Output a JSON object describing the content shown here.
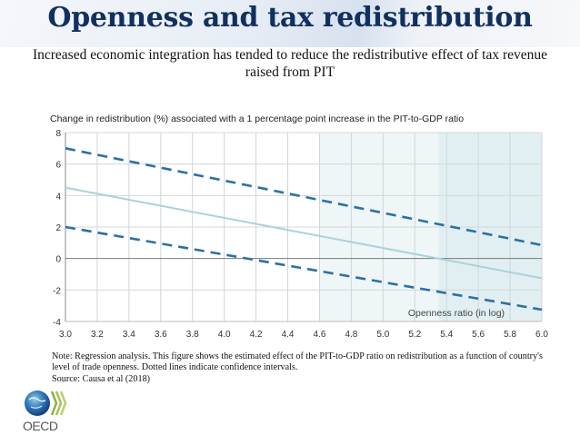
{
  "header": {
    "title": "Openness and tax redistribution",
    "subtitle": "Increased economic integration has tended to reduce the redistributive effect of tax revenue raised from PIT"
  },
  "chart_data": {
    "type": "line",
    "title": "Change in redistribution (%)  associated with a 1 percentage point increase in the PIT-to-GDP ratio",
    "xlabel": "Openness ratio (in log)",
    "ylabel": "",
    "xlim": [
      3.0,
      6.0
    ],
    "ylim": [
      -4,
      8
    ],
    "x_ticks": [
      "3.0",
      "3.2",
      "3.4",
      "3.6",
      "3.8",
      "4.0",
      "4.2",
      "4.4",
      "4.6",
      "4.8",
      "5.0",
      "5.2",
      "5.4",
      "5.6",
      "5.8",
      "6.0"
    ],
    "y_ticks": [
      "8",
      "6",
      "4",
      "2",
      "0",
      "-2",
      "-4"
    ],
    "grid": true,
    "shaded_regions": [
      {
        "name": "light",
        "x_start": 4.6,
        "x_end": 6.0,
        "color": "#eef6f8"
      },
      {
        "name": "darker",
        "x_start": 5.35,
        "x_end": 6.0,
        "color": "#e1eff2"
      }
    ],
    "series": [
      {
        "name": "Upper confidence interval",
        "style": "dashed",
        "color": "#2e6fa3",
        "x": [
          3.0,
          6.0
        ],
        "y": [
          7.0,
          0.85
        ]
      },
      {
        "name": "Estimated effect",
        "style": "solid",
        "color": "#a9d3d8",
        "x": [
          3.0,
          6.0
        ],
        "y": [
          4.5,
          -1.25
        ]
      },
      {
        "name": "Lower confidence interval",
        "style": "dashed",
        "color": "#2e6fa3",
        "x": [
          3.0,
          6.0
        ],
        "y": [
          2.0,
          -3.25
        ]
      }
    ]
  },
  "notes": {
    "line1": "Note:  Regression analysis. This figure shows the estimated effect of the PIT-to-GDP ratio on redistribution as a function of country's level of trade openness. Dotted lines indicate confidence intervals.",
    "source": "Source: Causa et al (2018)"
  },
  "logo": {
    "text": "OECD"
  }
}
